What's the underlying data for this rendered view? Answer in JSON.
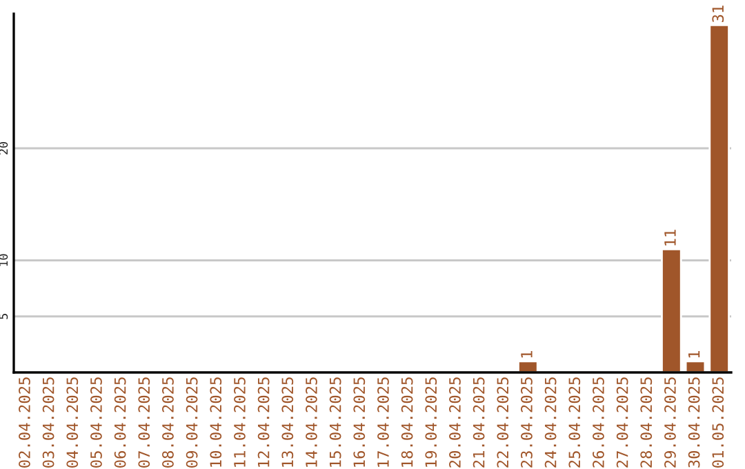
{
  "chart_data": {
    "type": "bar",
    "categories": [
      "02.04.2025",
      "03.04.2025",
      "04.04.2025",
      "05.04.2025",
      "06.04.2025",
      "07.04.2025",
      "08.04.2025",
      "09.04.2025",
      "10.04.2025",
      "11.04.2025",
      "12.04.2025",
      "13.04.2025",
      "14.04.2025",
      "15.04.2025",
      "16.04.2025",
      "17.04.2025",
      "18.04.2025",
      "19.04.2025",
      "20.04.2025",
      "21.04.2025",
      "22.04.2025",
      "23.04.2025",
      "24.04.2025",
      "25.04.2025",
      "26.04.2025",
      "27.04.2025",
      "28.04.2025",
      "29.04.2025",
      "30.04.2025",
      "01.05.2025"
    ],
    "values": [
      null,
      null,
      null,
      null,
      null,
      null,
      null,
      null,
      null,
      null,
      null,
      null,
      null,
      null,
      null,
      null,
      null,
      null,
      null,
      null,
      null,
      1,
      null,
      null,
      null,
      null,
      null,
      11,
      1,
      31
    ],
    "value_labels": [
      null,
      null,
      null,
      null,
      null,
      null,
      null,
      null,
      null,
      null,
      null,
      null,
      null,
      null,
      null,
      null,
      null,
      null,
      null,
      null,
      null,
      "1",
      null,
      null,
      null,
      null,
      null,
      "11",
      "1",
      "31"
    ],
    "color": "#a0562a",
    "ylim": [
      0,
      32
    ],
    "yticks": [
      5,
      10,
      20
    ],
    "grid": "y",
    "legend": false
  }
}
